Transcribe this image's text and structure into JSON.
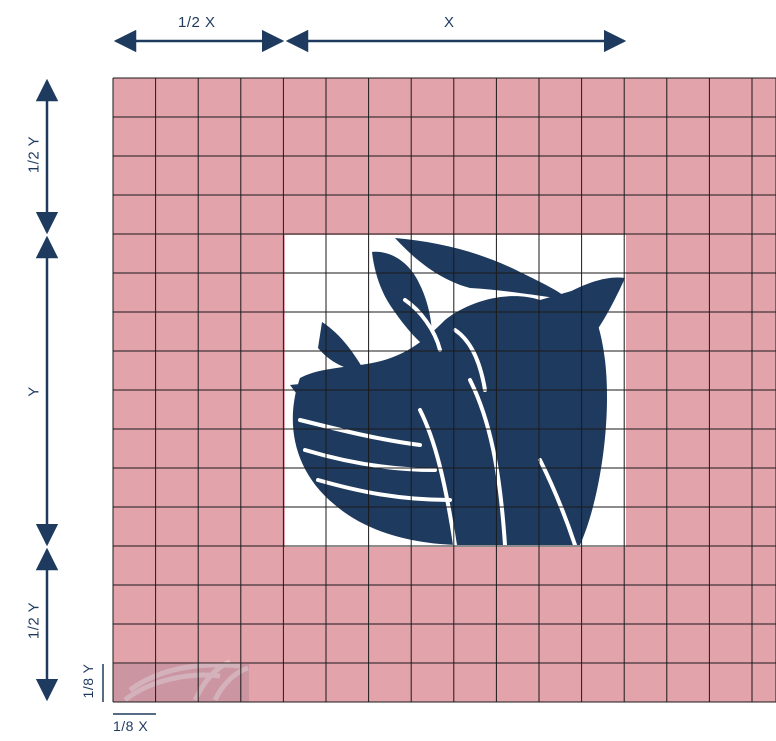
{
  "colors": {
    "margin_fill": "#e3a3ab",
    "grid_line": "#1a1a1a",
    "ink": "#1e3a5f",
    "clear_zone": "#ffffff"
  },
  "labels": {
    "top_half_x": "1/2 X",
    "top_x": "X",
    "left_half_y_top": "1/2 Y",
    "left_y": "Y",
    "left_half_y_bottom": "1/2 Y",
    "left_eighth_y": "1/8 Y",
    "bottom_eighth_x": "1/8 X"
  },
  "icons": {
    "logo": "unicorn-head-logo-icon",
    "watermark": "unicorn-watermark-icon"
  }
}
